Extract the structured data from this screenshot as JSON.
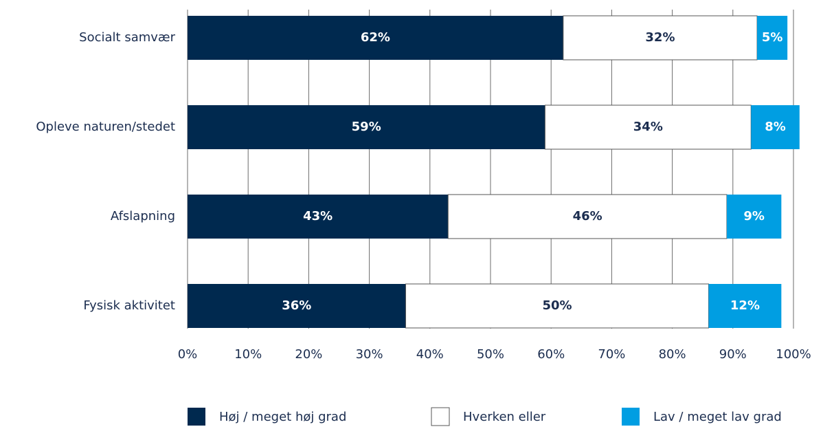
{
  "chart_data": {
    "type": "stacked-bar-horizontal",
    "categories": [
      "Socialt samvær",
      "Opleve naturen/stedet",
      "Afslapning",
      "Fysisk aktivitet"
    ],
    "series": [
      {
        "name": "Høj / meget høj grad",
        "color": "#00294f",
        "values": [
          62,
          59,
          43,
          36
        ],
        "value_labels": [
          "62%",
          "59%",
          "43%",
          "36%"
        ]
      },
      {
        "name": "Hverken eller",
        "color": "#ffffff",
        "values": [
          32,
          34,
          46,
          50
        ],
        "value_labels": [
          "32%",
          "34%",
          "46%",
          "50%"
        ]
      },
      {
        "name": "Lav / meget lav grad",
        "color": "#009ee2",
        "values": [
          5,
          8,
          9,
          12
        ],
        "value_labels": [
          "5%",
          "8%",
          "9%",
          "12%"
        ]
      }
    ],
    "xlim": [
      0,
      100
    ],
    "xticks": [
      {
        "value": 0,
        "label": "0%"
      },
      {
        "value": 10,
        "label": "10%"
      },
      {
        "value": 20,
        "label": "20%"
      },
      {
        "value": 30,
        "label": "30%"
      },
      {
        "value": 40,
        "label": "40%"
      },
      {
        "value": 50,
        "label": "50%"
      },
      {
        "value": 60,
        "label": "60%"
      },
      {
        "value": 70,
        "label": "70%"
      },
      {
        "value": 80,
        "label": "80%"
      },
      {
        "value": 90,
        "label": "90%"
      },
      {
        "value": 100,
        "label": "100%"
      }
    ],
    "grid": true,
    "legend": "bottom"
  }
}
